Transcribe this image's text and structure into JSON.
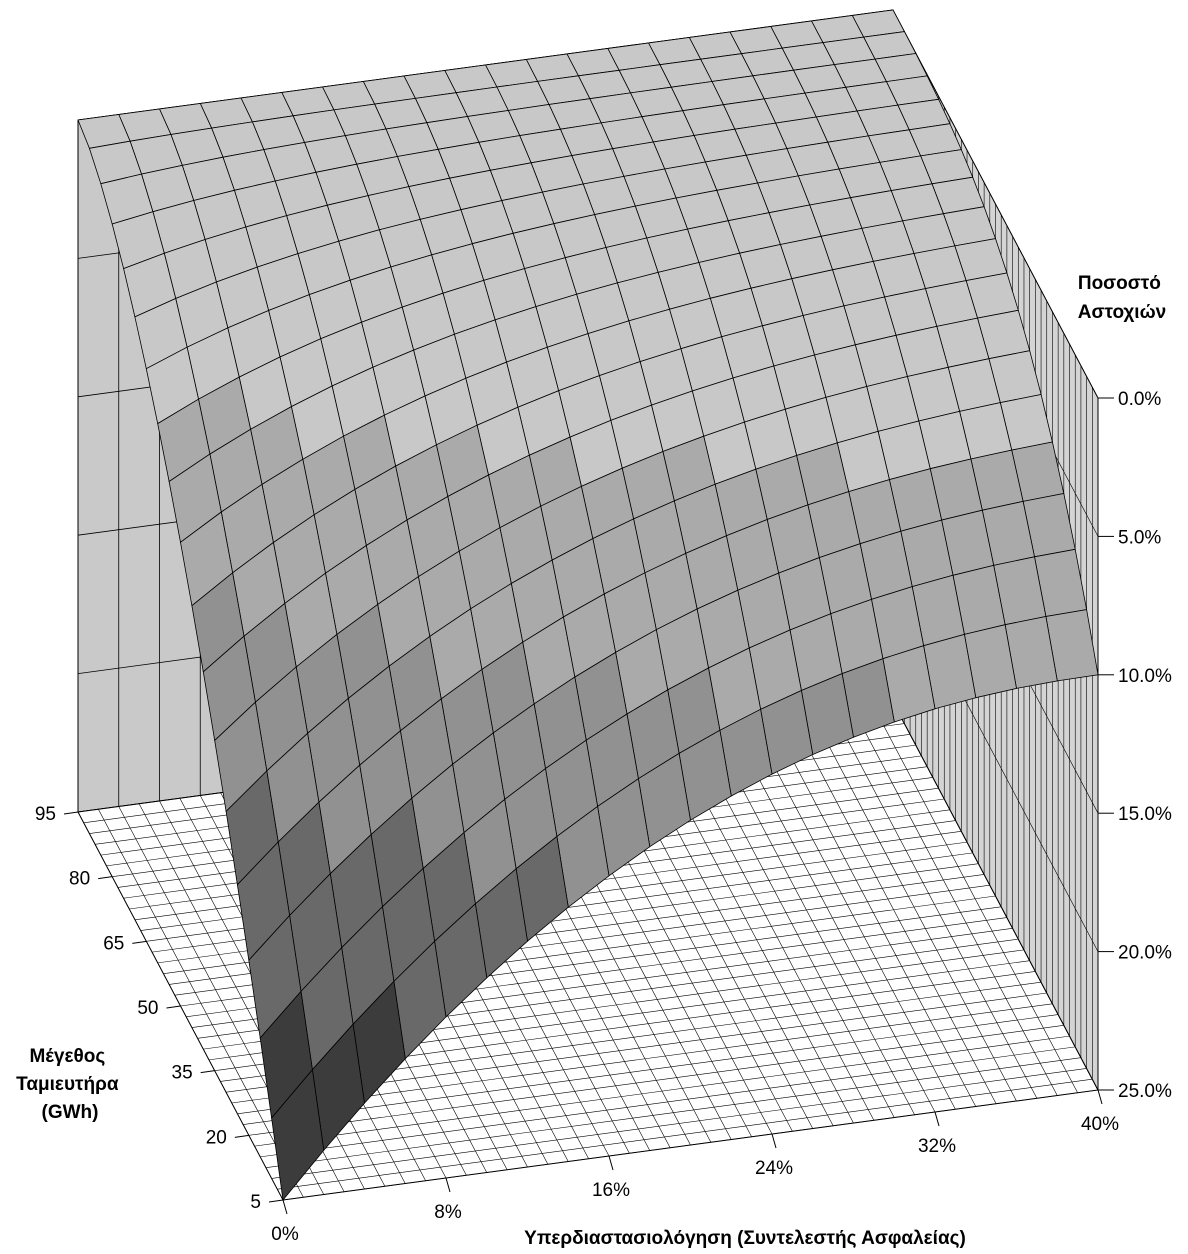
{
  "chart_data": {
    "type": "surface3d",
    "x_axis": {
      "label": "Υπερδιαστασιολόγηση (Συντελεστής Ασφαλείας)",
      "ticks": [
        "0%",
        "8%",
        "16%",
        "24%",
        "32%",
        "40%"
      ],
      "range": [
        0,
        40
      ],
      "unit": "%"
    },
    "y_axis": {
      "label_lines": [
        "Μέγεθος",
        "Ταμιευτήρα",
        "(GWh)"
      ],
      "ticks": [
        "5",
        "20",
        "35",
        "50",
        "65",
        "80",
        "95"
      ],
      "range": [
        5,
        95
      ]
    },
    "z_axis": {
      "label_lines": [
        "Ποσοστό",
        "Αστοχιών"
      ],
      "ticks": [
        "0.0%",
        "5.0%",
        "10.0%",
        "15.0%",
        "20.0%",
        "25.0%"
      ],
      "range": [
        0,
        25
      ],
      "reversed": true
    },
    "surface_samples": [
      {
        "x": 0,
        "y": 5,
        "z": 25
      },
      {
        "x": 0,
        "y": 95,
        "z": 0
      },
      {
        "x": 40,
        "y": 5,
        "z": 10
      },
      {
        "x": 40,
        "y": 95,
        "z": 0
      }
    ],
    "grid": true
  }
}
